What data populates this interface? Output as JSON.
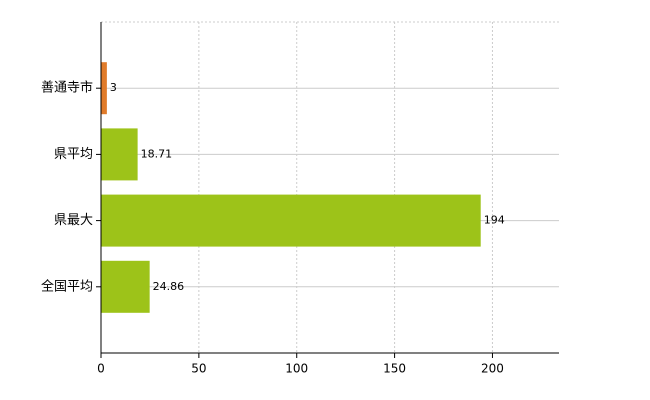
{
  "chart_data": {
    "type": "hbar",
    "categories": [
      "善通寺市",
      "県平均",
      "県最大",
      "全国平均"
    ],
    "values": [
      3,
      18.71,
      194,
      24.86
    ],
    "colors": [
      "#e07b2a",
      "#9dc319",
      "#9dc319",
      "#9dc319"
    ],
    "xlim": [
      0,
      234
    ],
    "xticks": [
      0,
      50,
      100,
      150,
      200
    ],
    "grid": true
  }
}
